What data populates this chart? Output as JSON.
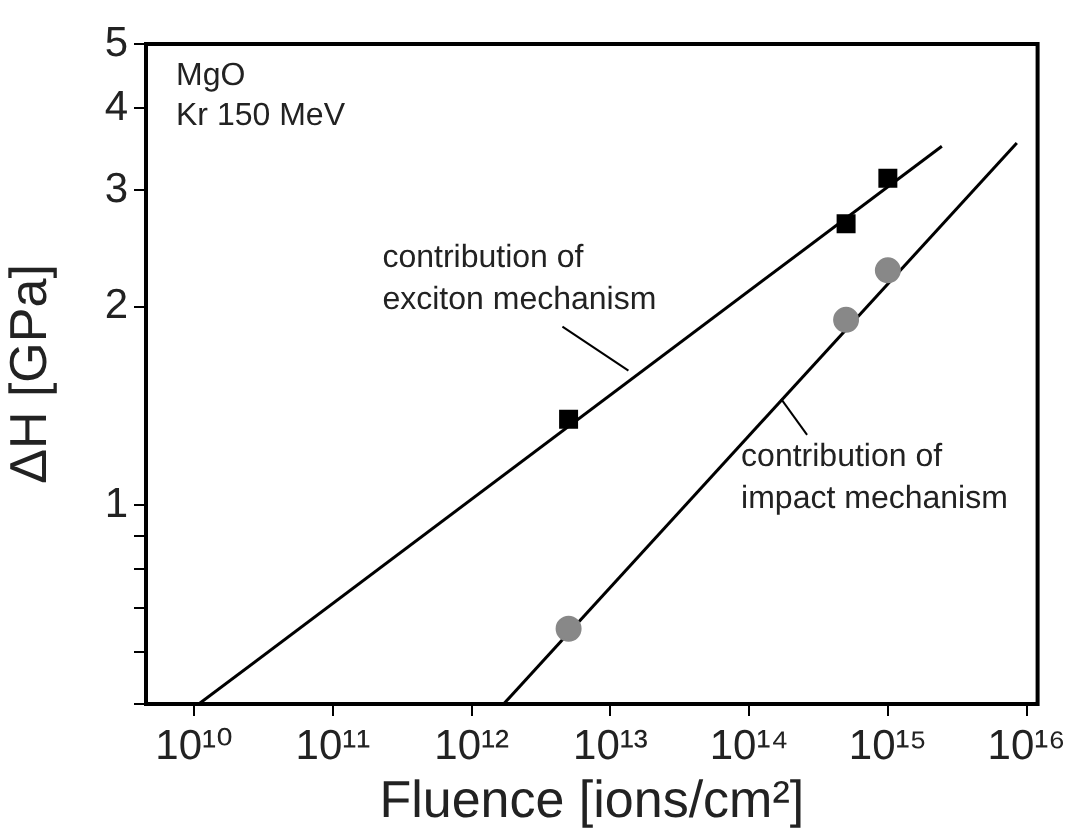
{
  "chart_data": {
    "type": "scatter",
    "xlabel": "Fluence [ions/cm²]",
    "ylabel": "ΔH [GPa]",
    "log": "xy",
    "grid": false,
    "legend": false,
    "xlim": [
      4500000000.0,
      1.2e+16
    ],
    "ylim": [
      0.5,
      5
    ],
    "xticks": [
      {
        "value": 10000000000.0,
        "label": "10¹⁰"
      },
      {
        "value": 100000000000.0,
        "label": "10¹¹"
      },
      {
        "value": 1000000000000.0,
        "label": "10¹²"
      },
      {
        "value": 10000000000000.0,
        "label": "10¹³"
      },
      {
        "value": 100000000000000.0,
        "label": "10¹⁴"
      },
      {
        "value": 1000000000000000.0,
        "label": "10¹⁵"
      },
      {
        "value": 1e+16,
        "label": "10¹⁶"
      }
    ],
    "yticks": [
      {
        "value": 0.5,
        "label": null
      },
      {
        "value": 0.6,
        "label": null
      },
      {
        "value": 0.7,
        "label": null
      },
      {
        "value": 0.8,
        "label": null
      },
      {
        "value": 0.9,
        "label": null
      },
      1,
      2,
      3,
      4,
      5
    ],
    "series": [
      {
        "type": "scatter",
        "marker": "square",
        "color": "#000000",
        "x": [
          5000000000000.0,
          500000000000000.0,
          1000000000000000.0
        ],
        "values": [
          1.35,
          2.67,
          3.13
        ]
      },
      {
        "type": "scatter",
        "marker": "circle",
        "color": "#888888",
        "x": [
          5000000000000.0,
          500000000000000.0,
          1000000000000000.0
        ],
        "values": [
          0.65,
          1.91,
          2.27
        ]
      },
      {
        "type": "line",
        "marker": "none",
        "color": "#000000",
        "x": [
          10800000000.0,
          2450000000000000.0
        ],
        "values": [
          0.5,
          3.5
        ]
      },
      {
        "type": "line",
        "marker": "none",
        "color": "#000000",
        "x": [
          1700000000000.0,
          8500000000000000.0
        ],
        "values": [
          0.5,
          3.54
        ]
      }
    ],
    "annotations": [
      "MgO\nKr 150 MeV",
      {
        "text": "contribution of\nexciton mechanism",
        "x": 13500000000000.0,
        "y": 1.6
      },
      {
        "text": "contribution of\nimpact mechanism",
        "x": 170000000000000.0,
        "y": 1.45
      }
    ]
  }
}
